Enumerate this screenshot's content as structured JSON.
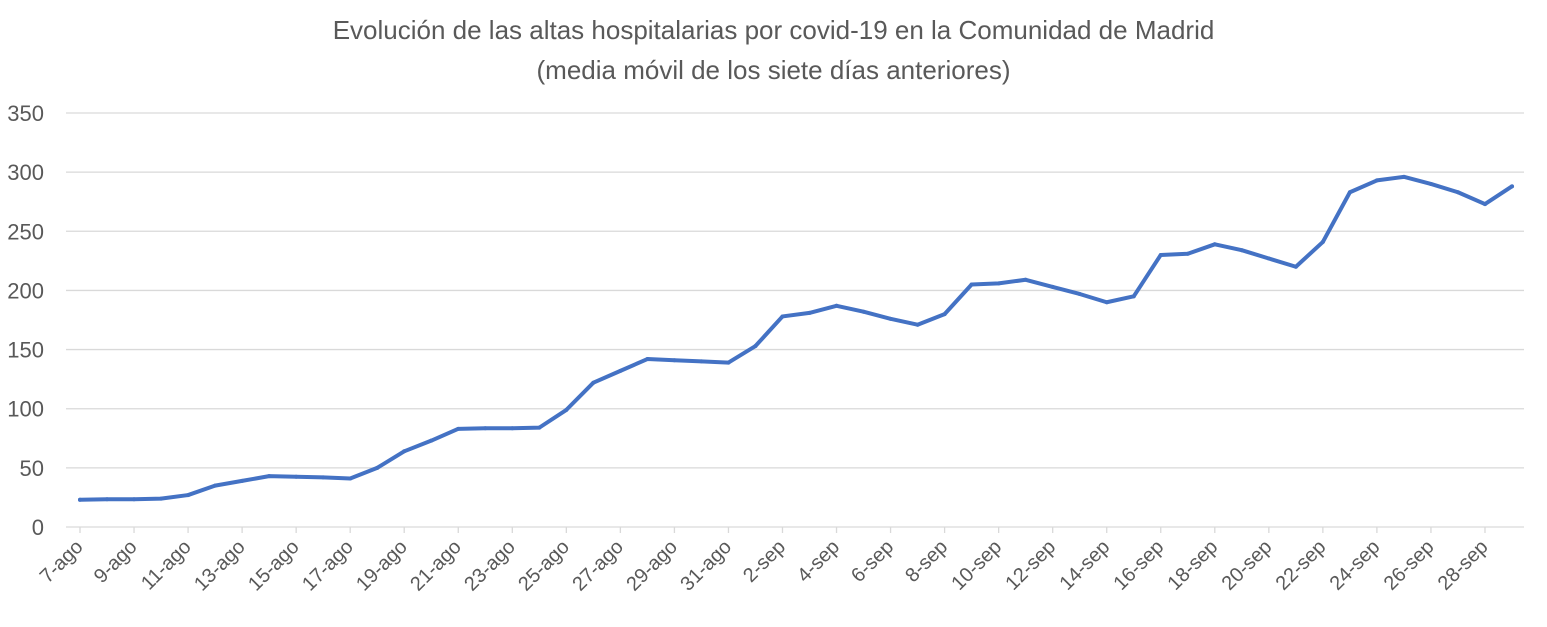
{
  "chart_data": {
    "type": "line",
    "title": "Evolución de las altas hospitalarias por covid-19 en la Comunidad de Madrid",
    "subtitle": "(media móvil de los siete días anteriores)",
    "xlabel": "",
    "ylabel": "",
    "ylim": [
      0,
      350
    ],
    "yticks": [
      "0",
      "50",
      "100",
      "150",
      "200",
      "250",
      "300",
      "350"
    ],
    "grid": true,
    "line_color": "#4472C4",
    "x": [
      "7-ago",
      "8-ago",
      "9-ago",
      "10-ago",
      "11-ago",
      "12-ago",
      "13-ago",
      "14-ago",
      "15-ago",
      "16-ago",
      "17-ago",
      "18-ago",
      "19-ago",
      "20-ago",
      "21-ago",
      "22-ago",
      "23-ago",
      "24-ago",
      "25-ago",
      "26-ago",
      "27-ago",
      "28-ago",
      "29-ago",
      "30-ago",
      "31-ago",
      "1-sep",
      "2-sep",
      "3-sep",
      "4-sep",
      "5-sep",
      "6-sep",
      "7-sep",
      "8-sep",
      "9-sep",
      "10-sep",
      "11-sep",
      "12-sep",
      "13-sep",
      "14-sep",
      "15-sep",
      "16-sep",
      "17-sep",
      "18-sep",
      "19-sep",
      "20-sep",
      "21-sep",
      "22-sep",
      "23-sep",
      "24-sep",
      "25-sep",
      "26-sep",
      "27-sep",
      "28-sep",
      "29-sep"
    ],
    "xtick_labels": [
      "7-ago",
      "9-ago",
      "11-ago",
      "13-ago",
      "15-ago",
      "17-ago",
      "19-ago",
      "21-ago",
      "23-ago",
      "25-ago",
      "27-ago",
      "29-ago",
      "31-ago",
      "2-sep",
      "4-sep",
      "6-sep",
      "8-sep",
      "10-sep",
      "12-sep",
      "14-sep",
      "16-sep",
      "18-sep",
      "20-sep",
      "22-sep",
      "24-sep",
      "26-sep",
      "28-sep"
    ],
    "series": [
      {
        "values": [
          23,
          23.5,
          23.5,
          24,
          27,
          35,
          39,
          43,
          42.5,
          42,
          41,
          50,
          64,
          73,
          83,
          83.5,
          83.5,
          84,
          99,
          122,
          132,
          142,
          141,
          140,
          139,
          153,
          178,
          181,
          187,
          182,
          176,
          171,
          180,
          205,
          206,
          209,
          203,
          197,
          190,
          195,
          230,
          231,
          239,
          234,
          227,
          220,
          241,
          283,
          293,
          296,
          290,
          283,
          273,
          288
        ]
      }
    ]
  }
}
